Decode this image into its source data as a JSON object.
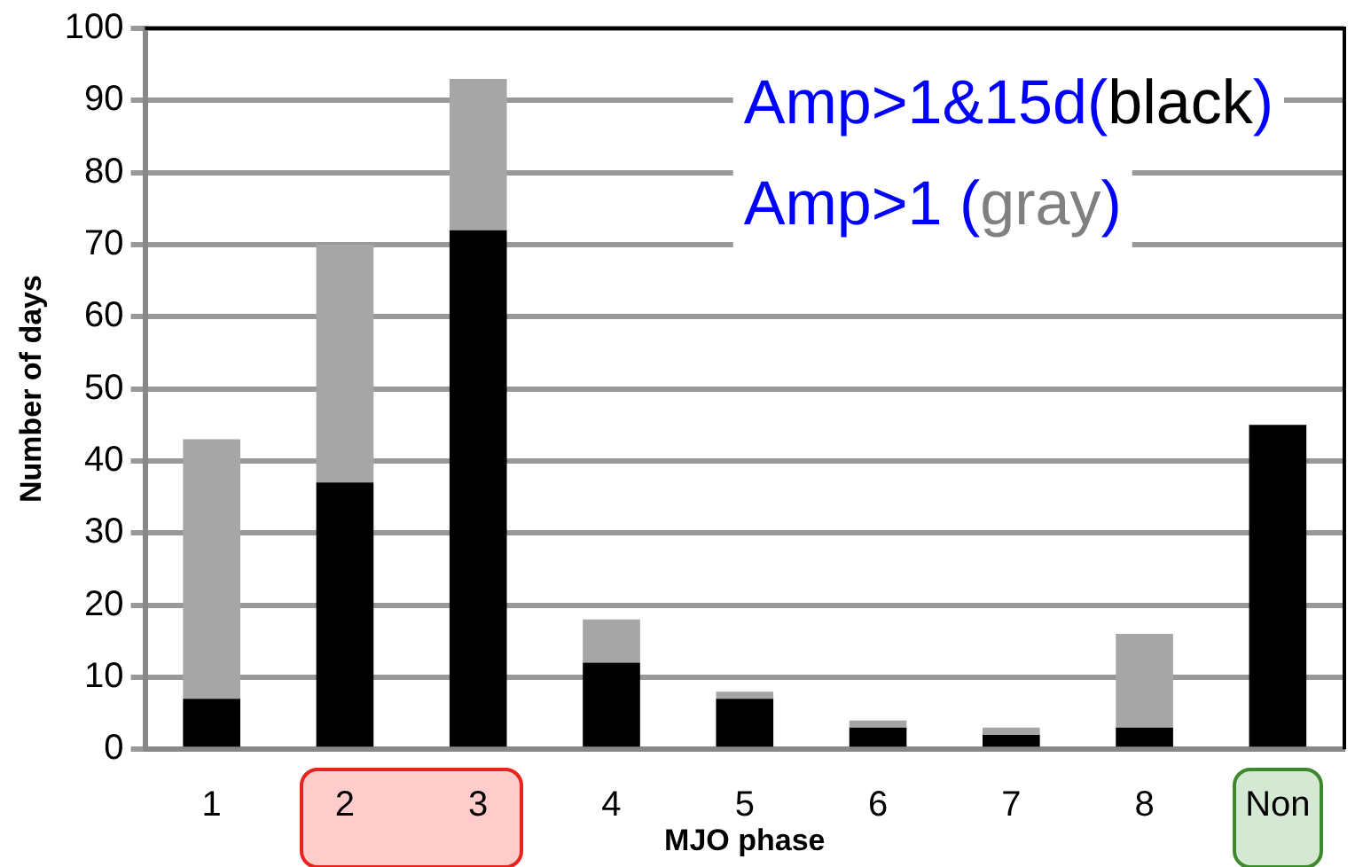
{
  "chart_data": {
    "type": "bar",
    "stacked": true,
    "xlabel": "MJO phase",
    "ylabel": "Number of days",
    "categories": [
      "1",
      "2",
      "3",
      "4",
      "5",
      "6",
      "7",
      "8",
      "Non"
    ],
    "series": [
      {
        "color": "#000000",
        "values": [
          7,
          37,
          72,
          12,
          7,
          3,
          2,
          3,
          45
        ]
      },
      {
        "color": "#a6a6a6",
        "values": [
          36,
          33,
          21,
          6,
          1,
          1,
          1,
          13,
          0
        ]
      }
    ],
    "ylim": [
      0,
      100
    ],
    "yticks": [
      0,
      10,
      20,
      30,
      40,
      50,
      60,
      70,
      80,
      90,
      100
    ],
    "grid": "y",
    "legend": false,
    "annotations": [
      "Amp>1&15d(black)",
      "Amp>1 (gray)"
    ]
  }
}
